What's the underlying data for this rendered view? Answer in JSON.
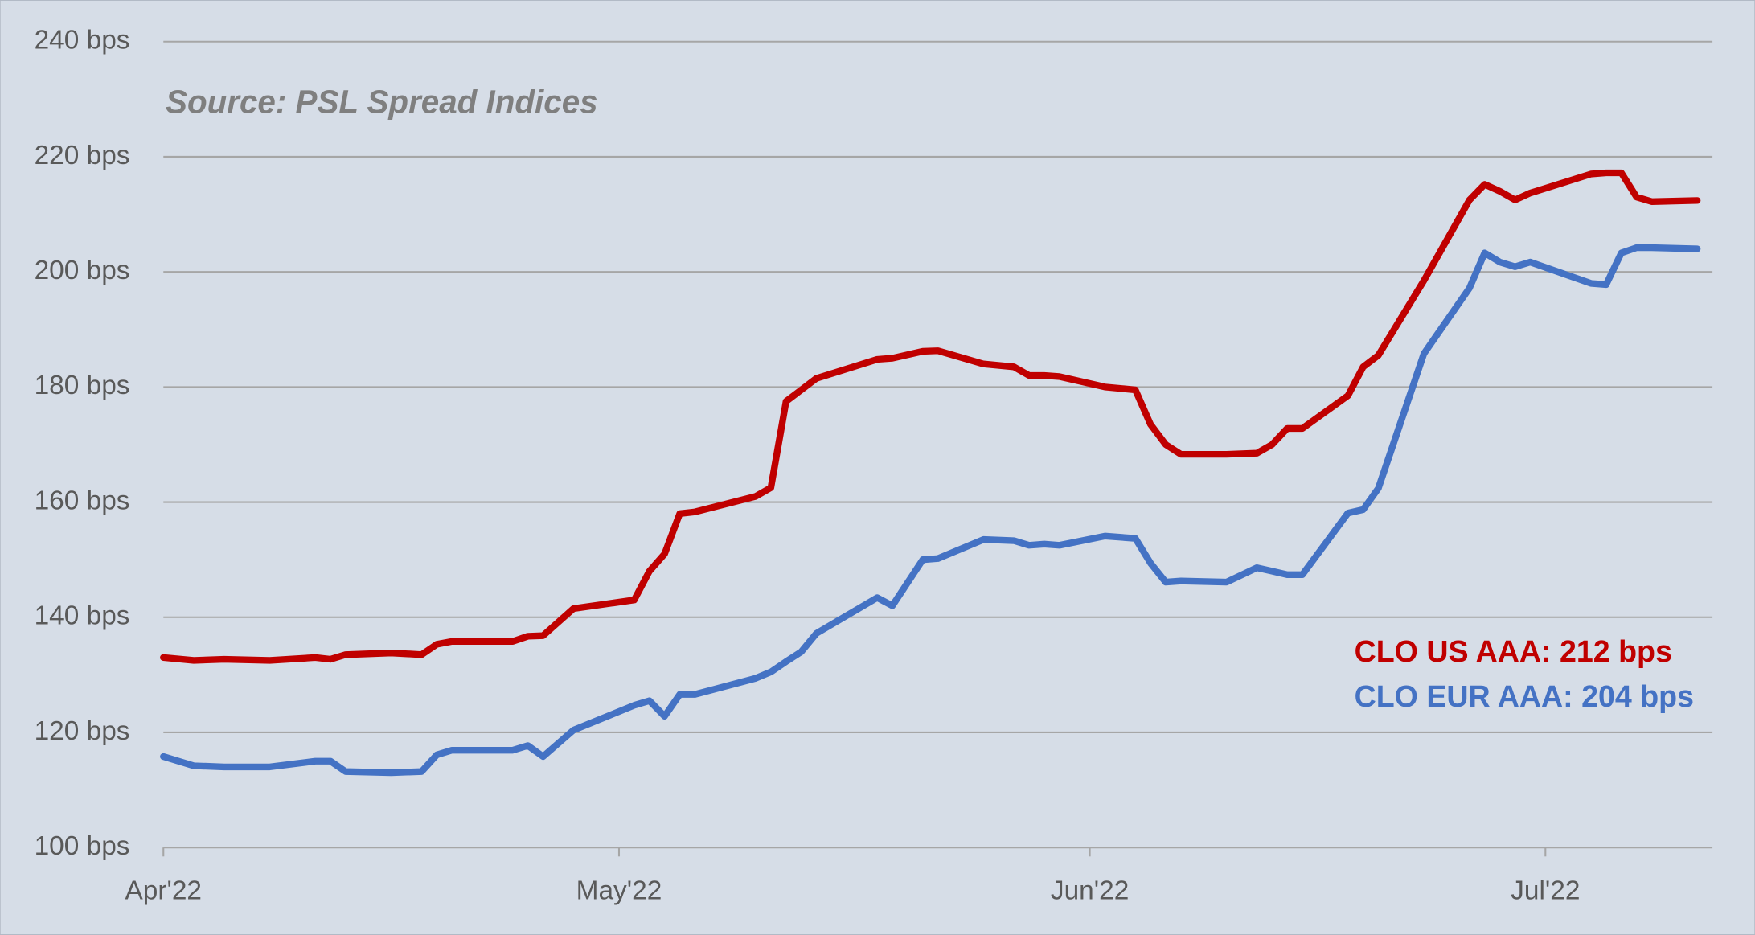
{
  "chart_data": {
    "type": "line",
    "source": "Source: PSL Spread Indices",
    "annotations": [
      "CLO US AAA: 212 bps",
      "CLO EUR AAA: 204 bps"
    ],
    "x": [
      0,
      2,
      4,
      7,
      10,
      11,
      12,
      15,
      17,
      18,
      19,
      23,
      24,
      25,
      27,
      31,
      32,
      33,
      34,
      35,
      39,
      40,
      41,
      42,
      43,
      47,
      48,
      50,
      51,
      54,
      56,
      57,
      58,
      59,
      62,
      64,
      65,
      66,
      67,
      70,
      72,
      73,
      74,
      75,
      78,
      79,
      80,
      83,
      86,
      87,
      88,
      89,
      90,
      94,
      95,
      96,
      97,
      98,
      101
    ],
    "xlim": [
      0,
      102
    ],
    "xticks": [
      {
        "value": 0,
        "label": "Apr'22"
      },
      {
        "value": 30,
        "label": "May'22"
      },
      {
        "value": 61,
        "label": "Jun'22"
      },
      {
        "value": 91,
        "label": "Jul'22"
      }
    ],
    "ylim": [
      100,
      240
    ],
    "yticks": [
      {
        "value": 100,
        "label": "100 bps"
      },
      {
        "value": 120,
        "label": "120 bps"
      },
      {
        "value": 140,
        "label": "140 bps"
      },
      {
        "value": 160,
        "label": "160 bps"
      },
      {
        "value": 180,
        "label": "180 bps"
      },
      {
        "value": 200,
        "label": "200 bps"
      },
      {
        "value": 220,
        "label": "220 bps"
      },
      {
        "value": 240,
        "label": "240 bps"
      }
    ],
    "grid": true,
    "series": [
      {
        "name": "CLO US AAA",
        "color": "#c00000",
        "values": [
          133,
          132.5,
          132.7,
          132.5,
          133,
          132.7,
          133.5,
          133.8,
          133.5,
          135.3,
          135.8,
          135.8,
          136.7,
          136.8,
          141.5,
          143,
          148,
          151,
          158,
          158.3,
          161,
          162.5,
          177.5,
          179.5,
          181.5,
          184.8,
          185,
          186.2,
          186.3,
          184,
          183.5,
          182,
          182,
          181.8,
          180,
          179.5,
          173.5,
          170,
          168.3,
          168.3,
          168.5,
          170,
          172.8,
          172.8,
          178.5,
          183.5,
          185.5,
          198.5,
          212.5,
          215.2,
          214,
          212.5,
          213.7,
          217,
          217.2,
          217.2,
          213,
          212.2,
          212.4
        ]
      },
      {
        "name": "CLO EUR AAA",
        "color": "#4472c4",
        "values": [
          115.8,
          114.2,
          114,
          114,
          115,
          115,
          113.2,
          113,
          113.2,
          116.1,
          116.9,
          116.9,
          117.7,
          115.8,
          120.4,
          124.7,
          125.5,
          122.8,
          126.6,
          126.6,
          129.4,
          130.5,
          132.3,
          134,
          137.2,
          143.4,
          142,
          150,
          150.2,
          153.5,
          153.3,
          152.5,
          152.7,
          152.5,
          154.1,
          153.7,
          149.4,
          146.1,
          146.3,
          146.1,
          148.6,
          148,
          147.4,
          147.4,
          158.1,
          158.7,
          162.4,
          185.8,
          197.2,
          203.3,
          201.7,
          200.9,
          201.7,
          198,
          197.8,
          203.3,
          204.2,
          204.2,
          204
        ]
      }
    ]
  }
}
